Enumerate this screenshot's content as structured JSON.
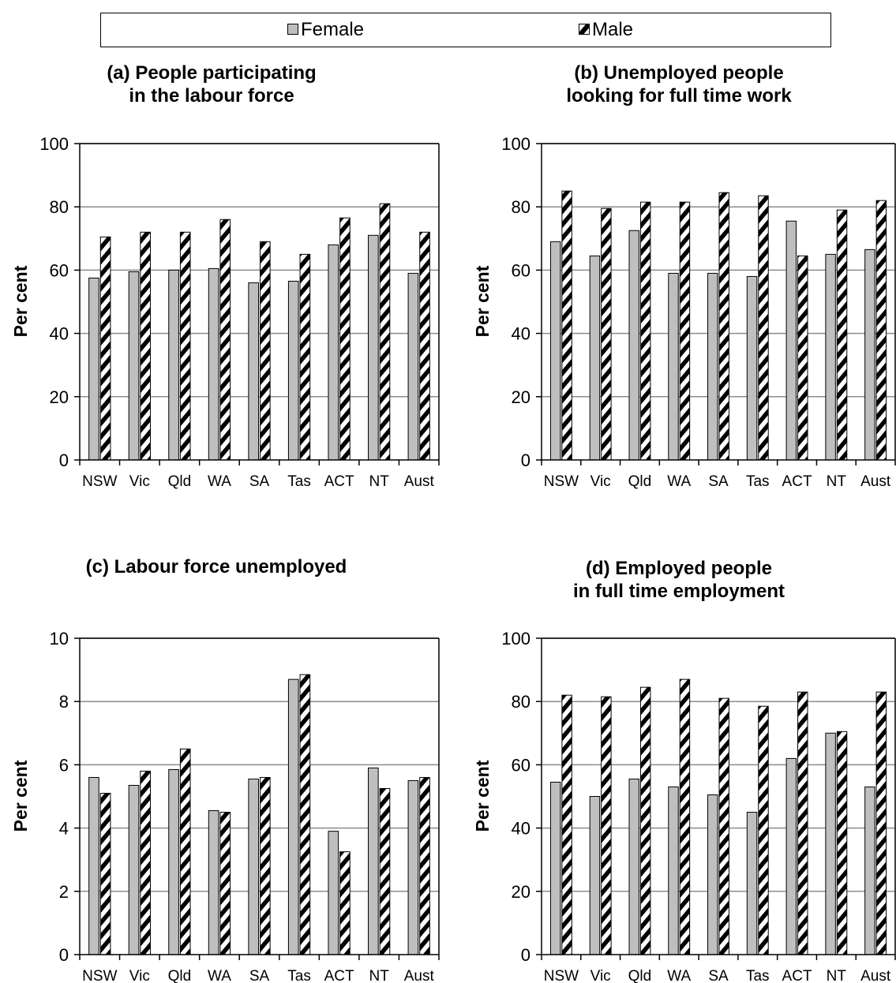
{
  "legend": {
    "female": "Female",
    "male": "Male"
  },
  "colors": {
    "female": "#bfbfbf",
    "male_pattern": "black-and-white diagonal hatch",
    "grid": "#8c8c8c"
  },
  "chart_data": [
    {
      "id": "a",
      "type": "bar",
      "title_lines": [
        "(a) People participating",
        "in the labour force"
      ],
      "ylabel": "Per cent",
      "xlabel": "",
      "ylim": [
        0,
        100
      ],
      "yticks": [
        0,
        20,
        40,
        60,
        80,
        100
      ],
      "grid": true,
      "categories": [
        "NSW",
        "Vic",
        "Qld",
        "WA",
        "SA",
        "Tas",
        "ACT",
        "NT",
        "Aust"
      ],
      "series": [
        {
          "name": "Female",
          "values": [
            57.5,
            59.5,
            60,
            60.5,
            56,
            56.5,
            68,
            71,
            59
          ]
        },
        {
          "name": "Male",
          "values": [
            70.5,
            72,
            72,
            76,
            69,
            65,
            76.5,
            81,
            72
          ]
        }
      ]
    },
    {
      "id": "b",
      "type": "bar",
      "title_lines": [
        "(b) Unemployed people",
        "looking for full time work"
      ],
      "ylabel": "Per cent",
      "xlabel": "",
      "ylim": [
        0,
        100
      ],
      "yticks": [
        0,
        20,
        40,
        60,
        80,
        100
      ],
      "grid": true,
      "categories": [
        "NSW",
        "Vic",
        "Qld",
        "WA",
        "SA",
        "Tas",
        "ACT",
        "NT",
        "Aust"
      ],
      "series": [
        {
          "name": "Female",
          "values": [
            69,
            64.5,
            72.5,
            59,
            59,
            58,
            75.5,
            65,
            66.5
          ]
        },
        {
          "name": "Male",
          "values": [
            85,
            79.5,
            81.5,
            81.5,
            84.5,
            83.5,
            64.5,
            79,
            82
          ]
        }
      ]
    },
    {
      "id": "c",
      "type": "bar",
      "title_lines": [
        "(c) Labour force unemployed"
      ],
      "ylabel": "Per cent",
      "xlabel": "",
      "ylim": [
        0,
        10
      ],
      "yticks": [
        0,
        2,
        4,
        6,
        8,
        10
      ],
      "grid": true,
      "categories": [
        "NSW",
        "Vic",
        "Qld",
        "WA",
        "SA",
        "Tas",
        "ACT",
        "NT",
        "Aust"
      ],
      "series": [
        {
          "name": "Female",
          "values": [
            5.6,
            5.35,
            5.85,
            4.55,
            5.55,
            8.7,
            3.9,
            5.9,
            5.5
          ]
        },
        {
          "name": "Male",
          "values": [
            5.1,
            5.8,
            6.5,
            4.5,
            5.6,
            8.85,
            3.25,
            5.25,
            5.6
          ]
        }
      ]
    },
    {
      "id": "d",
      "type": "bar",
      "title_lines": [
        "(d) Employed people",
        "in full time employment"
      ],
      "ylabel": "Per cent",
      "xlabel": "",
      "ylim": [
        0,
        100
      ],
      "yticks": [
        0,
        20,
        40,
        60,
        80,
        100
      ],
      "grid": true,
      "categories": [
        "NSW",
        "Vic",
        "Qld",
        "WA",
        "SA",
        "Tas",
        "ACT",
        "NT",
        "Aust"
      ],
      "series": [
        {
          "name": "Female",
          "values": [
            54.5,
            50,
            55.5,
            53,
            50.5,
            45,
            62,
            70,
            53
          ]
        },
        {
          "name": "Male",
          "values": [
            82,
            81.5,
            84.5,
            87,
            81,
            78.5,
            83,
            70.5,
            83
          ]
        }
      ]
    }
  ]
}
